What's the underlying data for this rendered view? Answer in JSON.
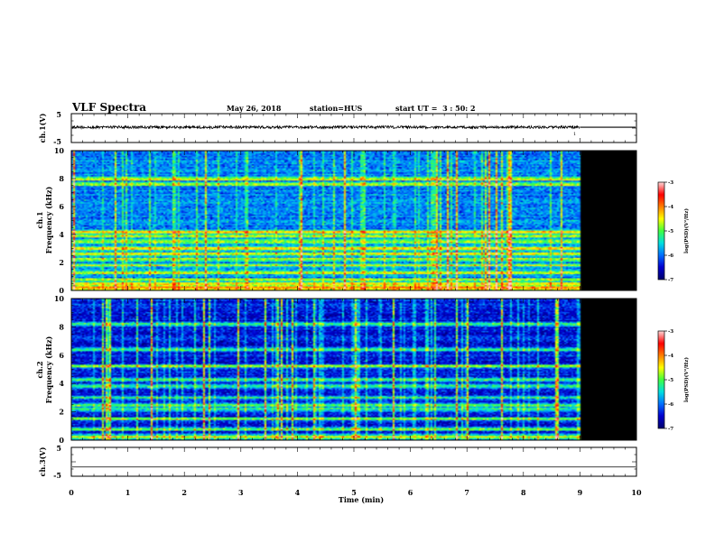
{
  "header": {
    "title": "VLF Spectra",
    "date": "May 26, 2018",
    "station": "station=HUS",
    "start": "start UT =  3 : 50: 2"
  },
  "chart_data": [
    {
      "type": "line",
      "panel": "ch1-waveform",
      "ylabel": "ch.1(V)",
      "ylim": [
        -5,
        5
      ],
      "ytick_labels": [
        "5",
        "-5"
      ],
      "xlim": [
        0,
        10
      ],
      "data_until_min": 9.0,
      "mean_level_V": 0.3,
      "marker_label": "1"
    },
    {
      "type": "heatmap",
      "panel": "ch1-spectrogram",
      "ylabel_line1": "ch.1",
      "ylabel_line2": "Frequency (kHz)",
      "ylim": [
        0,
        10
      ],
      "ytick_labels": [
        "0",
        "2",
        "4",
        "6",
        "8",
        "10"
      ],
      "xlim": [
        0,
        10
      ],
      "data_until_min": 9.0,
      "background_level": -5.9,
      "bands_kHz": [
        0.2,
        0.35,
        0.5,
        0.75,
        1.3,
        1.8,
        2.2,
        2.6,
        3.0,
        3.5,
        3.9,
        4.2,
        7.6,
        8.0
      ],
      "colorbar": {
        "label": "log(PSD)(V²/Hz)",
        "range": [
          -7,
          -3
        ],
        "tick_labels": [
          "-3",
          "-4",
          "-5",
          "-6",
          "-7"
        ]
      }
    },
    {
      "type": "heatmap",
      "panel": "ch2-spectrogram",
      "ylabel_line1": "ch.2",
      "ylabel_line2": "Frequency (kHz)",
      "ylim": [
        0,
        10
      ],
      "ytick_labels": [
        "0",
        "2",
        "4",
        "6",
        "8",
        "10"
      ],
      "xlim": [
        0,
        10
      ],
      "data_until_min": 9.0,
      "background_level": -6.4,
      "bands_kHz": [
        0.3,
        0.8,
        1.5,
        2.2,
        2.5,
        3.0,
        3.8,
        4.3,
        5.2,
        6.4,
        8.2
      ],
      "colorbar": {
        "label": "log(PSD)(V²/Hz)",
        "range": [
          -7,
          -3
        ],
        "tick_labels": [
          "-3",
          "-4",
          "-5",
          "-6",
          "-7"
        ]
      }
    },
    {
      "type": "line",
      "panel": "ch3-waveform",
      "ylabel": "ch.3(V)",
      "ylim": [
        -5,
        5
      ],
      "ytick_labels": [
        "5",
        "-5"
      ],
      "xlim": [
        0,
        10
      ],
      "xlabel": "Time (min)",
      "xtick_labels": [
        "0",
        "1",
        "2",
        "3",
        "4",
        "5",
        "6",
        "7",
        "8",
        "9",
        "10"
      ],
      "mean_level_V": -1.8
    }
  ],
  "colors": {
    "axis": "#000000",
    "no_data": "#000000",
    "colormap": [
      "#00006e",
      "#0000d0",
      "#0070ff",
      "#00e0e0",
      "#40ff40",
      "#ffff00",
      "#ff8000",
      "#ff0000",
      "#ffd0d0"
    ]
  }
}
